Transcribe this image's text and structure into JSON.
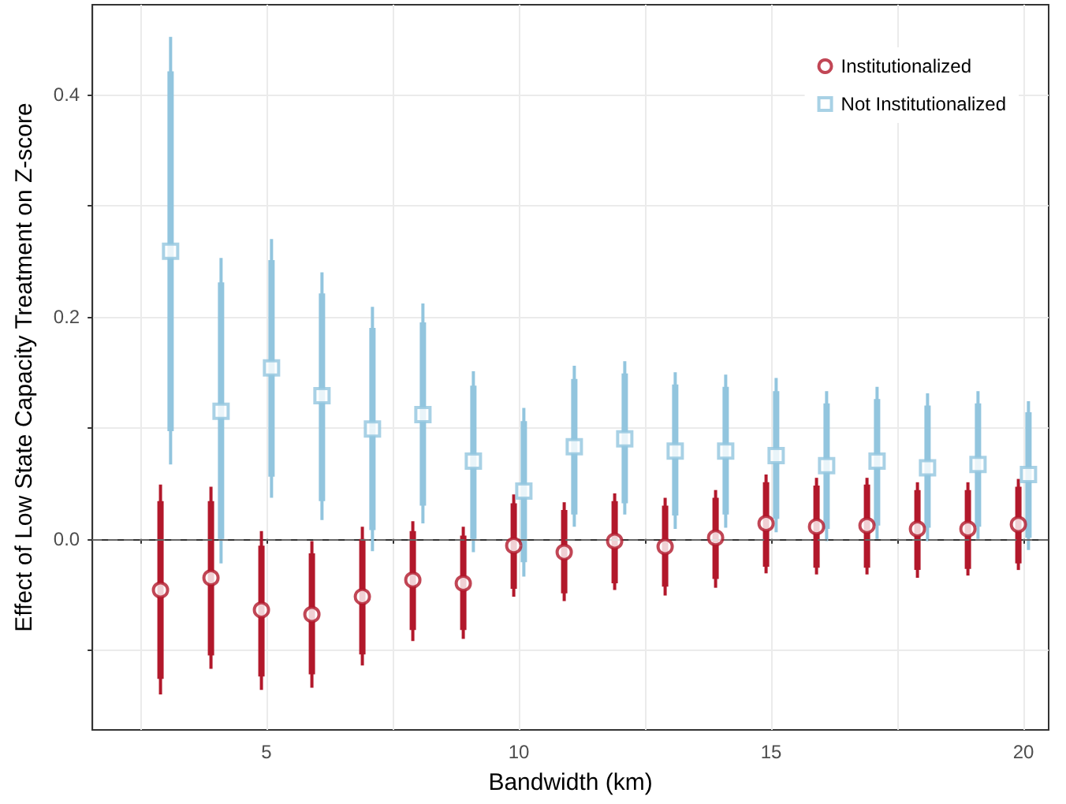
{
  "chart_data": {
    "type": "scatter",
    "xlabel": "Bandwidth (km)",
    "ylabel": "Effect of Low State Capacity Treatment on Z-score",
    "xlim": [
      1.55,
      20.5
    ],
    "ylim": [
      -0.172,
      0.481
    ],
    "xticks": [
      {
        "value": 2.5,
        "label": null
      },
      5,
      {
        "value": 7.5,
        "label": null
      },
      10,
      {
        "value": 12.5,
        "label": null
      },
      15,
      {
        "value": 17.5,
        "label": null
      },
      20
    ],
    "yticks": [
      {
        "value": -0.1,
        "label": null
      },
      {
        "value": 0,
        "label": "0.0"
      },
      {
        "value": 0.1,
        "label": null
      },
      0.2,
      {
        "value": 0.3,
        "label": null
      },
      0.4
    ],
    "grid": true,
    "legend": "top right",
    "ref_lines": [
      {
        "axis": "y",
        "value": 0,
        "label": null,
        "color": "#666666",
        "line_style": "dashed"
      }
    ],
    "series": [
      {
        "name": "Institutionalized",
        "color": "#b2182b",
        "marker": "circle",
        "x": [
          2.9,
          3.9,
          4.9,
          5.9,
          6.9,
          7.9,
          8.9,
          9.9,
          10.9,
          11.9,
          12.9,
          13.9,
          14.9,
          15.9,
          16.9,
          17.9,
          18.9,
          19.9
        ],
        "values": [
          -0.046,
          -0.035,
          -0.064,
          -0.068,
          -0.052,
          -0.037,
          -0.04,
          -0.006,
          -0.012,
          -0.002,
          -0.007,
          0.001,
          0.014,
          0.011,
          0.012,
          0.009,
          0.009,
          0.013
        ],
        "errors": [
          [
            -0.14,
            0.049
          ],
          [
            -0.117,
            0.047
          ],
          [
            -0.136,
            0.007
          ],
          [
            -0.134,
            -0.002
          ],
          [
            -0.114,
            0.011
          ],
          [
            -0.092,
            0.016
          ],
          [
            -0.09,
            0.011
          ],
          [
            -0.052,
            0.04
          ],
          [
            -0.056,
            0.033
          ],
          [
            -0.046,
            0.041
          ],
          [
            -0.051,
            0.037
          ],
          [
            -0.044,
            0.044
          ],
          [
            -0.031,
            0.058
          ],
          [
            -0.032,
            0.055
          ],
          [
            -0.032,
            0.055
          ],
          [
            -0.035,
            0.051
          ],
          [
            -0.033,
            0.051
          ],
          [
            -0.028,
            0.054
          ]
        ]
      },
      {
        "type": "bar",
        "color": "#b2182b",
        "x": [
          2.9,
          3.9,
          4.9,
          5.9,
          6.9,
          7.9,
          8.9,
          9.9,
          10.9,
          11.9,
          12.9,
          13.9,
          14.9,
          15.9,
          16.9,
          17.9,
          18.9,
          19.9
        ],
        "base": [
          -0.126,
          -0.105,
          -0.124,
          -0.122,
          -0.104,
          -0.082,
          -0.082,
          -0.045,
          -0.049,
          -0.04,
          -0.043,
          -0.036,
          -0.025,
          -0.026,
          -0.026,
          -0.028,
          -0.027,
          -0.022
        ],
        "values": [
          0.16,
          0.139,
          0.118,
          0.109,
          0.104,
          0.089,
          0.085,
          0.077,
          0.075,
          0.074,
          0.073,
          0.073,
          0.076,
          0.074,
          0.075,
          0.072,
          0.071,
          0.069
        ]
      },
      {
        "name": "Not Institutionalized",
        "color": "#92c5de",
        "marker": "square",
        "x": [
          3.1,
          4.1,
          5.1,
          6.1,
          7.1,
          8.1,
          9.1,
          10.1,
          11.1,
          12.1,
          13.1,
          14.1,
          15.1,
          16.1,
          17.1,
          18.1,
          19.1,
          20.1
        ],
        "values": [
          0.259,
          0.115,
          0.154,
          0.129,
          0.099,
          0.112,
          0.07,
          0.043,
          0.083,
          0.09,
          0.079,
          0.079,
          0.075,
          0.066,
          0.07,
          0.064,
          0.067,
          0.058
        ],
        "errors": [
          [
            0.067,
            0.452
          ],
          [
            -0.022,
            0.253
          ],
          [
            0.037,
            0.27
          ],
          [
            0.017,
            0.24
          ],
          [
            -0.011,
            0.209
          ],
          [
            0.014,
            0.212
          ],
          [
            -0.012,
            0.151
          ],
          [
            -0.034,
            0.118
          ],
          [
            0.011,
            0.156
          ],
          [
            0.022,
            0.16
          ],
          [
            0.009,
            0.15
          ],
          [
            0.01,
            0.148
          ],
          [
            0.006,
            0.145
          ],
          [
            -0.002,
            0.133
          ],
          [
            0.0,
            0.137
          ],
          [
            -0.002,
            0.131
          ],
          [
            0.0,
            0.133
          ],
          [
            -0.01,
            0.124
          ]
        ]
      },
      {
        "type": "bar",
        "color": "#92c5de",
        "x": [
          3.1,
          4.1,
          5.1,
          6.1,
          7.1,
          8.1,
          9.1,
          10.1,
          11.1,
          12.1,
          13.1,
          14.1,
          15.1,
          16.1,
          17.1,
          18.1,
          19.1,
          20.1
        ],
        "base": [
          0.097,
          0.0,
          0.056,
          0.034,
          0.008,
          0.03,
          0.0,
          -0.021,
          0.022,
          0.032,
          0.021,
          0.022,
          0.018,
          0.009,
          0.012,
          0.01,
          0.011,
          0.001
        ],
        "values": [
          0.324,
          0.231,
          0.195,
          0.187,
          0.182,
          0.165,
          0.138,
          0.127,
          0.122,
          0.117,
          0.118,
          0.115,
          0.115,
          0.113,
          0.114,
          0.11,
          0.111,
          0.113
        ]
      }
    ]
  }
}
